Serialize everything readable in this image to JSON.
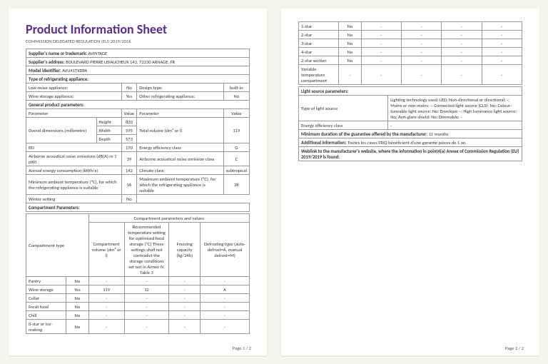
{
  "title": "Product Information Sheet",
  "regulation": "COMMISSION DELEGATED REGULATION (EU) 2019/2016",
  "labels": {
    "supplier_name": "Supplier's name or trademark:",
    "supplier_address": "Supplier's address:",
    "model_id": "Model identifier:",
    "type_refrig": "Type of refrigerating appliance:",
    "low_noise": "Low-noise appliance:",
    "design_type": "Design type:",
    "wine_storage": "Wine storage appliance:",
    "other_refrig": "Other refrigerating appliance:",
    "general_params": "General product parameters:",
    "parameter": "Parameter",
    "value": "Value",
    "overall_dim": "Overal dimensions (millimetre)",
    "height": "Height",
    "width": "Width",
    "depth": "Depth",
    "total_volume": "Total volume (dm³ or l)",
    "eei": "EEI",
    "energy_class": "Energy efficiency class",
    "airborne": "Airborne acoustical noise emissions (dB(A) re 1 pW)",
    "airborne_class": "Airborne acoustical noise emission class",
    "annual_energy": "Annual energy consumption (kWh/a)",
    "climate": "Climate class:",
    "min_ambient": "Minimum ambient temperature (ºC), for which the refrigerating appliance is suitable",
    "max_ambient": "Maximum ambient temperature (ºC), for which the refrigerating appliance is suitable",
    "winter": "Winter setting",
    "comp_params": "Compartment Parameters:",
    "comp_params_vals": "Compartment parameters and values",
    "comp_type": "Compartment type",
    "comp_volume": "Compartment volume (dm³ or l)",
    "recommended": "Recommended temperature setting for optimised food storage (ºC) These settings shall not contradict the storage conditions set out in Annex IV, Table 3",
    "freezing_cap": "Freezing capacity (kg/24h)",
    "defrost_type": "Defrosting type (auto-defrost=A, manual defrost=M)",
    "light_params": "Light source parameters:",
    "light_type": "Type of light source",
    "energy_eff_class": "Energy efficiency class",
    "min_duration": "Minimum duration of the guarantee offered by the manufacturer:",
    "additional_info": "Additional information:",
    "weblink": "Weblink to the manufacturer's website, where the information in point4(a) Annex of Commission Regulation (EU) 2019/2019 is found:"
  },
  "values": {
    "supplier_name": "AVINTAGE",
    "supplier_address": "BOULEVARD PIERRE LEFAUCHEUX 143, 72230 ARNAGE, FR",
    "model_id": "AVU41TXDPA",
    "low_noise": "No",
    "design_type": "built-in",
    "wine_storage": "Yes",
    "other_refrig": "No",
    "height": "820",
    "width": "595",
    "depth": "573",
    "total_volume": "119",
    "eei": "170",
    "energy_class": "G",
    "airborne": "39",
    "airborne_class": "C",
    "annual_energy": "142",
    "climate": "subtropical",
    "min_ambient": "16",
    "max_ambient": "38",
    "winter": "No",
    "light_desc": "Lighting technology used: LED; Non-directional or directional: -; Mains or non-mains: -; Connected light source (CLS): No; Colour-tuneable light source: No; Envelope: -; High luminance light source: No; Anti-glare shield: No; Dimmable: -",
    "energy_eff_class": "-",
    "min_duration": "12 months",
    "additional_info": "Toutes les caves FRIO bénéficient d'une garantie pièces de 1 an."
  },
  "compartments": [
    {
      "name": "Pantry",
      "yn": "No",
      "vol": "-",
      "rec": "-",
      "freeze": "-",
      "def": "-"
    },
    {
      "name": "Wine storage",
      "yn": "Yes",
      "vol": "119",
      "rec": "12",
      "freeze": "-",
      "def": "A"
    },
    {
      "name": "Cellar",
      "yn": "No",
      "vol": "-",
      "rec": "-",
      "freeze": "-",
      "def": "-"
    },
    {
      "name": "Fresh food",
      "yn": "No",
      "vol": "-",
      "rec": "-",
      "freeze": "-",
      "def": "-"
    },
    {
      "name": "Chill",
      "yn": "No",
      "vol": "-",
      "rec": "-",
      "freeze": "-",
      "def": "-"
    },
    {
      "name": "0-star or ice-making",
      "yn": "No",
      "vol": "-",
      "rec": "-",
      "freeze": "-",
      "def": "-"
    }
  ],
  "stars": [
    {
      "name": "1-star",
      "yn": "No"
    },
    {
      "name": "2-star",
      "yn": "No"
    },
    {
      "name": "3-star",
      "yn": "No"
    },
    {
      "name": "4-star",
      "yn": "No"
    },
    {
      "name": "2-star section",
      "yn": "No"
    },
    {
      "name": "Variable temperature compartment",
      "yn": "-"
    }
  ],
  "pagenums": {
    "p1": "Page 1 / 2",
    "p2": "Page 2 / 2"
  }
}
